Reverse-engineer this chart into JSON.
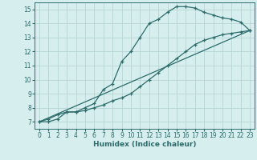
{
  "line1_x": [
    0,
    1,
    2,
    3,
    4,
    5,
    6,
    7,
    8,
    9,
    10,
    11,
    12,
    13,
    14,
    15,
    16,
    17,
    18,
    19,
    20,
    21,
    22,
    23
  ],
  "line1_y": [
    7.0,
    7.2,
    7.5,
    7.7,
    7.7,
    8.0,
    8.3,
    9.3,
    9.7,
    11.3,
    12.0,
    13.0,
    14.0,
    14.3,
    14.8,
    15.2,
    15.2,
    15.1,
    14.8,
    14.6,
    14.4,
    14.3,
    14.1,
    13.5
  ],
  "line2_x": [
    0,
    1,
    2,
    3,
    4,
    5,
    6,
    7,
    8,
    9,
    10,
    11,
    12,
    13,
    14,
    15,
    16,
    17,
    18,
    19,
    20,
    21,
    22,
    23
  ],
  "line2_y": [
    7.0,
    7.0,
    7.2,
    7.7,
    7.7,
    7.8,
    8.0,
    8.2,
    8.5,
    8.7,
    9.0,
    9.5,
    10.0,
    10.5,
    11.0,
    11.5,
    12.0,
    12.5,
    12.8,
    13.0,
    13.2,
    13.3,
    13.4,
    13.5
  ],
  "line3_x": [
    0,
    23
  ],
  "line3_y": [
    7.0,
    13.5
  ],
  "color": "#2d6b6b",
  "bg_color": "#d6eeee",
  "grid_color": "#b0d0d0",
  "xlabel": "Humidex (Indice chaleur)",
  "xlim": [
    -0.5,
    23.5
  ],
  "ylim": [
    6.5,
    15.5
  ],
  "yticks": [
    7,
    8,
    9,
    10,
    11,
    12,
    13,
    14,
    15
  ],
  "xticks": [
    0,
    1,
    2,
    3,
    4,
    5,
    6,
    7,
    8,
    9,
    10,
    11,
    12,
    13,
    14,
    15,
    16,
    17,
    18,
    19,
    20,
    21,
    22,
    23
  ],
  "marker": "+",
  "markersize": 3.5,
  "linewidth": 0.9,
  "tick_fontsize": 5.5,
  "xlabel_fontsize": 6.5
}
